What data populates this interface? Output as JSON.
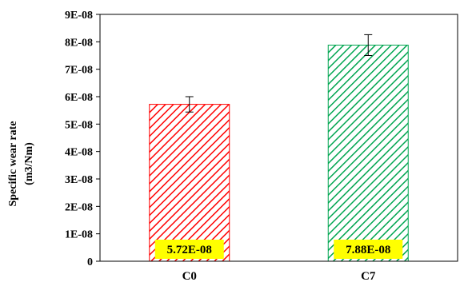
{
  "chart_data": {
    "type": "bar",
    "categories": [
      "C0",
      "C7"
    ],
    "values": [
      5.72e-08,
      7.88e-08
    ],
    "error_bars": [
      2.8e-09,
      3.8e-09
    ],
    "data_labels": [
      "5.72E-08",
      "7.88E-08"
    ],
    "ylabel_line1": "Specific wear rate",
    "ylabel_line2": "(m3/Nm)",
    "ylim": [
      0,
      9e-08
    ],
    "yticks": [
      {
        "value": 0,
        "label": "0"
      },
      {
        "value": 1e-08,
        "label": "1E-08"
      },
      {
        "value": 2e-08,
        "label": "2E-08"
      },
      {
        "value": 3e-08,
        "label": "3E-08"
      },
      {
        "value": 4e-08,
        "label": "4E-08"
      },
      {
        "value": 5e-08,
        "label": "5E-08"
      },
      {
        "value": 6e-08,
        "label": "6E-08"
      },
      {
        "value": 7e-08,
        "label": "7E-08"
      },
      {
        "value": 8e-08,
        "label": "8E-08"
      },
      {
        "value": 9e-08,
        "label": "9E-08"
      }
    ],
    "bar_colors": [
      "#ff0000",
      "#00a550"
    ],
    "label_background": "#ffff00",
    "grid": false,
    "legend": "none"
  }
}
